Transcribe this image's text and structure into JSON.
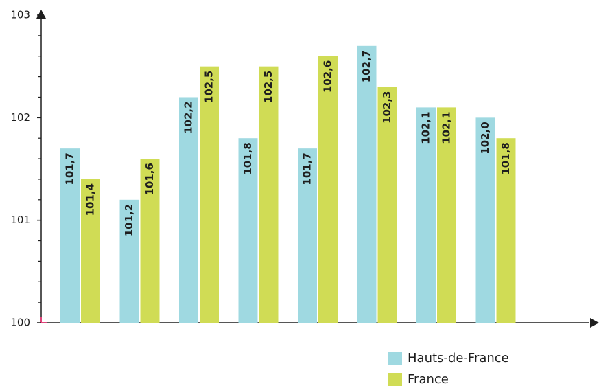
{
  "chart_data": {
    "type": "bar",
    "categories": [
      null,
      null,
      null,
      null,
      null,
      null,
      null,
      null
    ],
    "series": [
      {
        "name": "Hauts-de-France",
        "color": "#9fd9e1",
        "values": [
          101.7,
          101.2,
          102.2,
          101.8,
          101.7,
          102.7,
          102.1,
          102.0
        ],
        "value_labels": [
          "101,7",
          "101,2",
          "102,2",
          "101,8",
          "101,7",
          "102,7",
          "102,1",
          "102,0"
        ]
      },
      {
        "name": "France",
        "color": "#d0dc55",
        "values": [
          101.4,
          101.6,
          102.5,
          102.5,
          102.6,
          102.3,
          102.1,
          101.8
        ],
        "value_labels": [
          "101,4",
          "101,6",
          "102,5",
          "102,5",
          "102,6",
          "102,3",
          "102,1",
          "101,8"
        ]
      }
    ],
    "ylim": [
      100,
      103
    ],
    "yticks": [
      100,
      101,
      102,
      103
    ],
    "minor_yticks": [
      100.2,
      100.4,
      100.6,
      100.8,
      101.2,
      101.4,
      101.6,
      101.8,
      102.2,
      102.4,
      102.6,
      102.8
    ],
    "legend": "bottom-right"
  }
}
